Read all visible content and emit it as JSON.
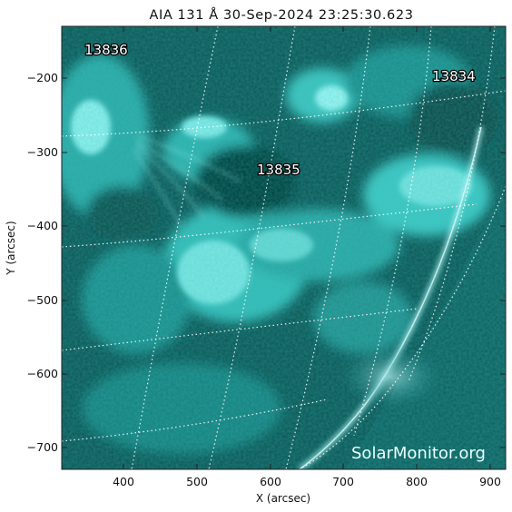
{
  "title": "AIA 131 Å 30-Sep-2024 23:25:30.623",
  "xlabel": "X (arcsec)",
  "ylabel": "Y (arcsec)",
  "xlim": [
    313,
    920
  ],
  "ylim": [
    -733,
    -133
  ],
  "x_ticks": [
    "400",
    "500",
    "600",
    "700",
    "800",
    "900"
  ],
  "y_ticks": [
    "−200",
    "−300",
    "−400",
    "−500",
    "−600",
    "−700"
  ],
  "x_tick_values": [
    400,
    500,
    600,
    700,
    800,
    900
  ],
  "y_tick_values": [
    -200,
    -300,
    -400,
    -500,
    -600,
    -700
  ],
  "active_regions": [
    {
      "label": "13836",
      "x": 358,
      "y": -168
    },
    {
      "label": "13834",
      "x": 847,
      "y": -195
    },
    {
      "label": "13835",
      "x": 620,
      "y": -327
    }
  ],
  "watermark": "SolarMonitor.org",
  "colors": {
    "colormap_dark": "#002626",
    "colormap_mid": "#1f9a98",
    "colormap_bright": "#c9ffff",
    "grid": "#ffffff"
  }
}
